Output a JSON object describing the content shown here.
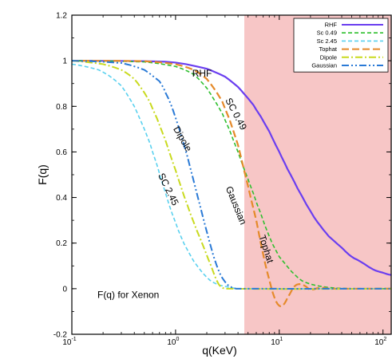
{
  "chart_data": {
    "type": "line",
    "title": "",
    "xlabel": "q(KeV)",
    "ylabel": "F(q)",
    "xscale": "log",
    "xlim": [
      0.1,
      120
    ],
    "ylim": [
      -0.2,
      1.2
    ],
    "grid": false,
    "legend_position": "top-right",
    "x_ticks": [
      {
        "value": 0.1,
        "base": "10",
        "exp": "-1"
      },
      {
        "value": 1,
        "base": "10",
        "exp": "0"
      },
      {
        "value": 10,
        "base": "10",
        "exp": "1"
      },
      {
        "value": 100,
        "base": "10",
        "exp": "2"
      }
    ],
    "y_ticks": [
      {
        "value": -0.2,
        "label": "-0.2"
      },
      {
        "value": 0,
        "label": "0"
      },
      {
        "value": 0.2,
        "label": "0.2"
      },
      {
        "value": 0.4,
        "label": "0.4"
      },
      {
        "value": 0.6,
        "label": "0.6"
      },
      {
        "value": 0.8,
        "label": "0.8"
      },
      {
        "value": 1,
        "label": "1"
      },
      {
        "value": 1.2,
        "label": "1.2"
      }
    ],
    "shaded_region": {
      "x_start": 4.6,
      "x_end": 120,
      "color": "#f7c6c6"
    },
    "series": [
      {
        "name": "RHF",
        "color": "#6a3ef0",
        "dash": "solid",
        "width": 2.2,
        "points": [
          [
            0.1,
            1.0
          ],
          [
            0.5,
            0.998
          ],
          [
            1,
            0.992
          ],
          [
            2,
            0.965
          ],
          [
            3,
            0.93
          ],
          [
            4,
            0.885
          ],
          [
            5,
            0.835
          ],
          [
            6,
            0.785
          ],
          [
            8,
            0.69
          ],
          [
            10,
            0.6
          ],
          [
            12,
            0.525
          ],
          [
            15,
            0.44
          ],
          [
            20,
            0.34
          ],
          [
            25,
            0.275
          ],
          [
            30,
            0.23
          ],
          [
            40,
            0.18
          ],
          [
            50,
            0.14
          ],
          [
            60,
            0.12
          ],
          [
            80,
            0.085
          ],
          [
            100,
            0.07
          ],
          [
            120,
            0.06
          ]
        ]
      },
      {
        "name": "Sc 0.49",
        "color": "#2fbf2f",
        "dash": "dash",
        "width": 1.6,
        "points": [
          [
            0.1,
            1.0
          ],
          [
            0.5,
            0.995
          ],
          [
            1,
            0.975
          ],
          [
            1.5,
            0.94
          ],
          [
            2,
            0.88
          ],
          [
            2.5,
            0.81
          ],
          [
            3,
            0.74
          ],
          [
            4,
            0.6
          ],
          [
            5,
            0.48
          ],
          [
            6,
            0.38
          ],
          [
            8,
            0.23
          ],
          [
            10,
            0.14
          ],
          [
            15,
            0.05
          ],
          [
            20,
            0.02
          ],
          [
            30,
            0.005
          ],
          [
            50,
            0.0
          ],
          [
            120,
            0.0
          ]
        ]
      },
      {
        "name": "Sc 2.45",
        "color": "#5ad1ef",
        "dash": "dash",
        "width": 1.6,
        "points": [
          [
            0.1,
            0.985
          ],
          [
            0.15,
            0.97
          ],
          [
            0.2,
            0.95
          ],
          [
            0.3,
            0.89
          ],
          [
            0.4,
            0.8
          ],
          [
            0.5,
            0.7
          ],
          [
            0.6,
            0.6
          ],
          [
            0.8,
            0.42
          ],
          [
            1,
            0.29
          ],
          [
            1.2,
            0.2
          ],
          [
            1.5,
            0.12
          ],
          [
            2,
            0.05
          ],
          [
            2.5,
            0.02
          ],
          [
            3,
            0.01
          ],
          [
            4,
            0.0
          ],
          [
            120,
            0.0
          ]
        ]
      },
      {
        "name": "Tophat",
        "color": "#e58a2a",
        "dash": "longdash",
        "width": 2.2,
        "points": [
          [
            0.1,
            1.0
          ],
          [
            0.5,
            0.998
          ],
          [
            1,
            0.985
          ],
          [
            1.5,
            0.96
          ],
          [
            2,
            0.92
          ],
          [
            2.5,
            0.86
          ],
          [
            3,
            0.79
          ],
          [
            4,
            0.63
          ],
          [
            5,
            0.45
          ],
          [
            6,
            0.3
          ],
          [
            7,
            0.15
          ],
          [
            8,
            0.04
          ],
          [
            9,
            -0.04
          ],
          [
            10,
            -0.075
          ],
          [
            11,
            -0.07
          ],
          [
            12,
            -0.04
          ],
          [
            14,
            0.01
          ],
          [
            16,
            0.02
          ],
          [
            18,
            0.01
          ],
          [
            20,
            -0.005
          ],
          [
            25,
            0.005
          ],
          [
            30,
            0.0
          ],
          [
            120,
            0.0
          ]
        ]
      },
      {
        "name": "Dipole",
        "color": "#c9da1f",
        "dash": "dashdot",
        "width": 2,
        "points": [
          [
            0.1,
            1.0
          ],
          [
            0.2,
            0.985
          ],
          [
            0.3,
            0.96
          ],
          [
            0.4,
            0.92
          ],
          [
            0.5,
            0.86
          ],
          [
            0.6,
            0.79
          ],
          [
            0.8,
            0.65
          ],
          [
            1,
            0.52
          ],
          [
            1.2,
            0.41
          ],
          [
            1.5,
            0.29
          ],
          [
            1.8,
            0.2
          ],
          [
            2.2,
            0.1
          ],
          [
            2.6,
            0.02
          ],
          [
            3,
            0.0
          ],
          [
            120,
            0.0
          ]
        ]
      },
      {
        "name": "Gaussian",
        "color": "#2a7ad6",
        "dash": "dashdotdot",
        "width": 2,
        "points": [
          [
            0.1,
            1.0
          ],
          [
            0.3,
            0.99
          ],
          [
            0.5,
            0.96
          ],
          [
            0.7,
            0.91
          ],
          [
            0.8,
            0.86
          ],
          [
            1,
            0.75
          ],
          [
            1.3,
            0.58
          ],
          [
            1.6,
            0.42
          ],
          [
            2,
            0.25
          ],
          [
            2.5,
            0.1
          ],
          [
            3,
            0.03
          ],
          [
            3.5,
            0.005
          ],
          [
            4,
            0.0
          ],
          [
            120,
            0.0
          ]
        ]
      }
    ],
    "annotations": [
      {
        "text": "RHF",
        "x": 1.8,
        "y": 0.93,
        "rotate": 0
      },
      {
        "text": "SC 0.49",
        "x": 3.6,
        "y": 0.76,
        "rotate": 62
      },
      {
        "text": "Dipole",
        "x": 1.1,
        "y": 0.65,
        "rotate": 60
      },
      {
        "text": "SC 2.45",
        "x": 0.8,
        "y": 0.43,
        "rotate": 64
      },
      {
        "text": "Gaussian",
        "x": 3.6,
        "y": 0.36,
        "rotate": 68
      },
      {
        "text": "Tophat",
        "x": 7.0,
        "y": 0.17,
        "rotate": 72
      },
      {
        "text": "F(q) for Xenon",
        "x": 0.35,
        "y": -0.04,
        "rotate": 0
      }
    ]
  }
}
